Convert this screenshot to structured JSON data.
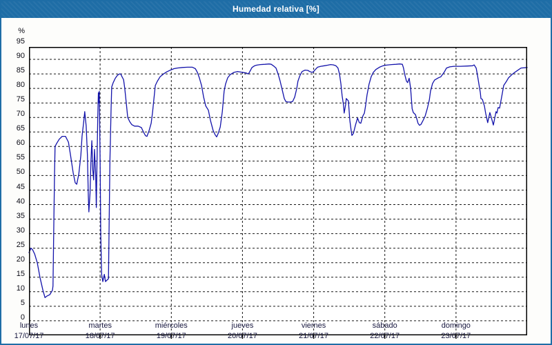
{
  "window": {
    "title": "Humedad relativa [%]"
  },
  "colors": {
    "frame_blue": "#1e6da6",
    "title_text": "#ffffff",
    "page_bg": "#fdfdfb",
    "plot_bg": "#ffffff",
    "line_blue": "#1212aa",
    "grid": "#141414",
    "axis_label": "#0a0a14",
    "date_label": "#16163e"
  },
  "y_axis": {
    "unit": "%",
    "min": 0,
    "max": 95,
    "step": 5,
    "labels": [
      "%",
      "95",
      "90",
      "85",
      "80",
      "75",
      "70",
      "65",
      "60",
      "55",
      "50",
      "45",
      "40",
      "35",
      "30",
      "25",
      "20",
      "15",
      "10",
      "5",
      "0"
    ]
  },
  "x_axis": {
    "days": [
      {
        "name": "lunes",
        "date": "17/07/17"
      },
      {
        "name": "martes",
        "date": "18/07/17"
      },
      {
        "name": "miércoles",
        "date": "19/07/17"
      },
      {
        "name": "jueves",
        "date": "20/07/17"
      },
      {
        "name": "viernes",
        "date": "21/07/17"
      },
      {
        "name": "sábado",
        "date": "22/07/17"
      },
      {
        "name": "domingo",
        "date": "23/07/17"
      }
    ]
  },
  "chart_data": {
    "type": "line",
    "title": "Humedad relativa [%]",
    "ylabel": "%",
    "ylim": [
      0,
      99.3
    ],
    "xlim_hours": [
      0,
      168
    ],
    "x_unit": "hours from lunes 17/07/17 00:00 to domingo 23/07/17 24:00",
    "grid": "dashed",
    "legend_position": "none",
    "series": [
      {
        "name": "Humedad relativa",
        "points": [
          [
            0,
            28.5
          ],
          [
            0.7,
            30
          ],
          [
            1.2,
            29.5
          ],
          [
            1.9,
            28
          ],
          [
            2.8,
            25
          ],
          [
            3.7,
            20
          ],
          [
            4.7,
            15.5
          ],
          [
            5.4,
            13
          ],
          [
            6,
            13.5
          ],
          [
            7,
            14
          ],
          [
            7.9,
            15.5
          ],
          [
            8.1,
            17
          ],
          [
            8.4,
            40
          ],
          [
            8.6,
            55
          ],
          [
            8.8,
            65
          ],
          [
            9.3,
            66
          ],
          [
            10.2,
            67.5
          ],
          [
            11.2,
            68.5
          ],
          [
            12.3,
            68.5
          ],
          [
            13.3,
            66.5
          ],
          [
            14,
            62
          ],
          [
            14.9,
            56
          ],
          [
            15.6,
            52.5
          ],
          [
            16.1,
            52
          ],
          [
            16.8,
            55.5
          ],
          [
            17.5,
            62
          ],
          [
            17.9,
            68.5
          ],
          [
            18.4,
            73
          ],
          [
            18.8,
            77
          ],
          [
            19.3,
            72
          ],
          [
            19.7,
            62
          ],
          [
            20,
            48
          ],
          [
            20.2,
            42.5
          ],
          [
            20.6,
            49
          ],
          [
            20.9,
            60
          ],
          [
            21.2,
            67
          ],
          [
            21.5,
            57
          ],
          [
            21.8,
            53.5
          ],
          [
            22.1,
            64
          ],
          [
            22.5,
            55
          ],
          [
            22.7,
            44
          ],
          [
            22.9,
            57
          ],
          [
            23.2,
            75
          ],
          [
            23.4,
            83.5
          ],
          [
            23.6,
            80
          ],
          [
            23.7,
            84
          ],
          [
            24,
            60
          ],
          [
            24.2,
            35
          ],
          [
            24.5,
            21
          ],
          [
            24.9,
            18.5
          ],
          [
            25.4,
            21
          ],
          [
            25.8,
            18.5
          ],
          [
            26.3,
            19
          ],
          [
            26.8,
            19.5
          ],
          [
            27,
            35
          ],
          [
            27.3,
            60
          ],
          [
            27.7,
            78
          ],
          [
            27.9,
            85.5
          ],
          [
            28.4,
            87
          ],
          [
            29.1,
            88.5
          ],
          [
            29.8,
            89.5
          ],
          [
            30.5,
            90
          ],
          [
            30.9,
            90
          ],
          [
            31.4,
            89
          ],
          [
            31.9,
            88
          ],
          [
            32.3,
            85
          ],
          [
            32.8,
            80
          ],
          [
            33.3,
            75
          ],
          [
            34,
            73.5
          ],
          [
            34.7,
            72.5
          ],
          [
            35.6,
            72
          ],
          [
            36.8,
            72
          ],
          [
            37.9,
            71.5
          ],
          [
            38.6,
            70
          ],
          [
            39.3,
            68.7
          ],
          [
            39.8,
            68.5
          ],
          [
            40.5,
            70.5
          ],
          [
            41.2,
            73
          ],
          [
            41.7,
            77
          ],
          [
            42.1,
            81
          ],
          [
            42.6,
            86
          ],
          [
            43.3,
            87.5
          ],
          [
            44.2,
            89
          ],
          [
            45.4,
            90
          ],
          [
            46.5,
            90.7
          ],
          [
            47.7,
            91.3
          ],
          [
            48.9,
            91.8
          ],
          [
            50,
            92
          ],
          [
            51.7,
            92.2
          ],
          [
            53.5,
            92.3
          ],
          [
            55.1,
            92.3
          ],
          [
            56.1,
            91.8
          ],
          [
            56.8,
            90.5
          ],
          [
            57.5,
            88.5
          ],
          [
            58.2,
            86
          ],
          [
            58.9,
            82
          ],
          [
            59.6,
            79
          ],
          [
            60.5,
            77.5
          ],
          [
            61.2,
            74
          ],
          [
            62.1,
            70.5
          ],
          [
            62.8,
            69
          ],
          [
            63.3,
            68.3
          ],
          [
            63.8,
            69.5
          ],
          [
            64.5,
            71.7
          ],
          [
            65.2,
            77
          ],
          [
            65.8,
            84
          ],
          [
            66.3,
            86.5
          ],
          [
            67,
            88.6
          ],
          [
            67.9,
            89.8
          ],
          [
            69.1,
            90.5
          ],
          [
            70.3,
            90.8
          ],
          [
            71,
            90.7
          ],
          [
            73.3,
            90.3
          ],
          [
            73.8,
            90
          ],
          [
            74.2,
            90.3
          ],
          [
            75.2,
            92.2
          ],
          [
            76.1,
            92.8
          ],
          [
            76.8,
            93
          ],
          [
            78,
            93.2
          ],
          [
            79.6,
            93.3
          ],
          [
            81,
            93.4
          ],
          [
            81.7,
            93.3
          ],
          [
            82.4,
            92.8
          ],
          [
            83.3,
            92
          ],
          [
            84,
            90
          ],
          [
            84.7,
            87.5
          ],
          [
            85.4,
            84.5
          ],
          [
            86.1,
            81.5
          ],
          [
            86.6,
            80.5
          ],
          [
            87.3,
            80.3
          ],
          [
            88.2,
            80.3
          ],
          [
            88.9,
            80.5
          ],
          [
            89.6,
            82
          ],
          [
            90.3,
            85
          ],
          [
            90.7,
            87.5
          ],
          [
            91.4,
            89.5
          ],
          [
            92.1,
            90.8
          ],
          [
            93.1,
            91.3
          ],
          [
            94,
            91.2
          ],
          [
            94.7,
            90.8
          ],
          [
            95.4,
            90.5
          ],
          [
            95.9,
            90.7
          ],
          [
            96.6,
            91.5
          ],
          [
            97.3,
            92.3
          ],
          [
            98.4,
            92.6
          ],
          [
            99.6,
            92.8
          ],
          [
            100.8,
            93
          ],
          [
            101.7,
            93.2
          ],
          [
            102.6,
            93.1
          ],
          [
            103.5,
            92.8
          ],
          [
            104.2,
            92
          ],
          [
            104.7,
            90
          ],
          [
            105.2,
            86.5
          ],
          [
            105.6,
            82.5
          ],
          [
            106.1,
            79
          ],
          [
            106.3,
            76.5
          ],
          [
            106.8,
            79.5
          ],
          [
            107,
            81.5
          ],
          [
            107.7,
            80.7
          ],
          [
            108.2,
            74
          ],
          [
            108.7,
            70
          ],
          [
            108.9,
            68.8
          ],
          [
            109.4,
            69.5
          ],
          [
            110.1,
            72.4
          ],
          [
            110.8,
            74.8
          ],
          [
            111.4,
            73.2
          ],
          [
            111.9,
            73
          ],
          [
            112.6,
            75.5
          ],
          [
            113.1,
            76.5
          ],
          [
            113.5,
            79
          ],
          [
            114,
            82.7
          ],
          [
            114.7,
            86.5
          ],
          [
            115.4,
            89
          ],
          [
            116.1,
            90.5
          ],
          [
            117,
            91.5
          ],
          [
            118.2,
            92.3
          ],
          [
            119.4,
            92.8
          ],
          [
            120.5,
            93
          ],
          [
            122.2,
            93.2
          ],
          [
            123.8,
            93.3
          ],
          [
            125,
            93.4
          ],
          [
            125.9,
            93.3
          ],
          [
            126.3,
            92
          ],
          [
            126.8,
            89.5
          ],
          [
            127.3,
            87.5
          ],
          [
            127.7,
            87
          ],
          [
            128.2,
            88.5
          ],
          [
            128.7,
            85
          ],
          [
            129.2,
            78
          ],
          [
            129.6,
            76.7
          ],
          [
            130.3,
            76
          ],
          [
            130.8,
            74.5
          ],
          [
            131.2,
            73
          ],
          [
            131.7,
            72.3
          ],
          [
            132.2,
            72.6
          ],
          [
            132.9,
            74
          ],
          [
            133.6,
            75.5
          ],
          [
            134.3,
            78
          ],
          [
            135,
            81
          ],
          [
            135.4,
            84
          ],
          [
            136.1,
            86.7
          ],
          [
            136.8,
            87.9
          ],
          [
            138,
            88.6
          ],
          [
            138.9,
            89
          ],
          [
            140.1,
            90.7
          ],
          [
            140.8,
            92
          ],
          [
            141.9,
            92.4
          ],
          [
            143.3,
            92.6
          ],
          [
            145.4,
            92.6
          ],
          [
            147.8,
            92.7
          ],
          [
            149.6,
            92.8
          ],
          [
            150.1,
            93.1
          ],
          [
            150.8,
            92
          ],
          [
            151.2,
            89.8
          ],
          [
            151.7,
            86.7
          ],
          [
            152.2,
            83.6
          ],
          [
            152.4,
            81.5
          ],
          [
            152.9,
            81.2
          ],
          [
            153.6,
            78.9
          ],
          [
            154,
            76.5
          ],
          [
            154.7,
            73.2
          ],
          [
            155.4,
            76.7
          ],
          [
            155.9,
            75
          ],
          [
            156.4,
            73.2
          ],
          [
            156.6,
            72.4
          ],
          [
            157.1,
            75
          ],
          [
            157.5,
            77
          ],
          [
            157.8,
            76.5
          ],
          [
            158.2,
            78.4
          ],
          [
            158.7,
            78.2
          ],
          [
            159.4,
            82
          ],
          [
            160.1,
            86
          ],
          [
            161,
            87.4
          ],
          [
            161.7,
            88.6
          ],
          [
            162.9,
            89.8
          ],
          [
            163.8,
            90.5
          ],
          [
            164.5,
            91
          ],
          [
            165.9,
            92
          ],
          [
            167.1,
            92.1
          ],
          [
            168,
            92.2
          ]
        ]
      }
    ]
  }
}
